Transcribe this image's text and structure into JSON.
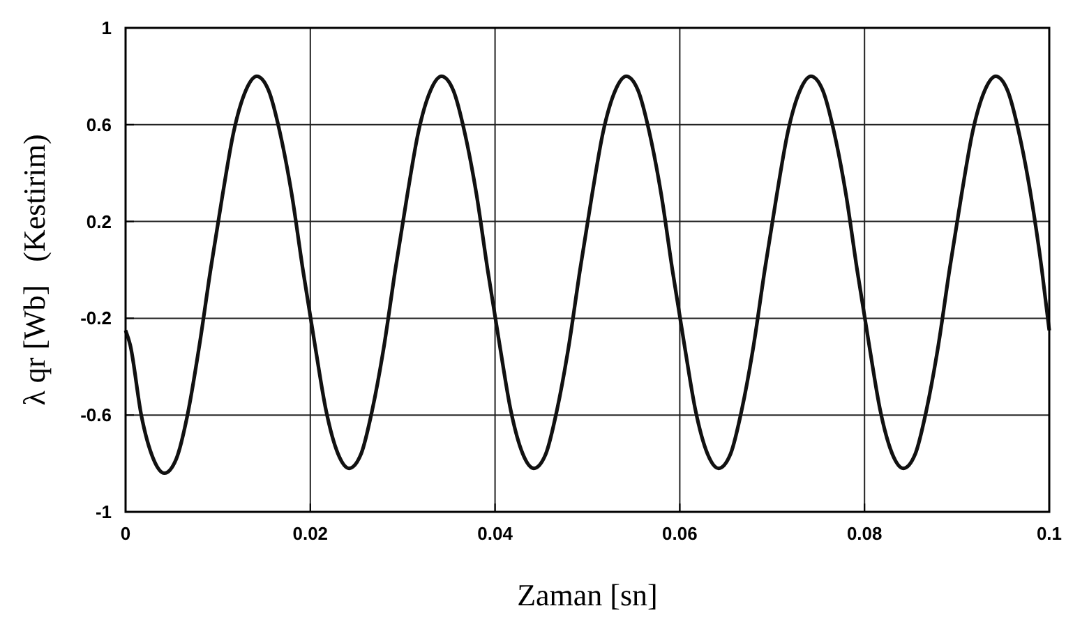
{
  "chart_data": {
    "type": "line",
    "xlabel": "Zaman [sn]",
    "ylabel": "λ qr [Wb]   (Kestirim)",
    "xlim": [
      0,
      0.1
    ],
    "ylim": [
      -1,
      1
    ],
    "xticks": [
      0,
      0.02,
      0.04,
      0.06,
      0.08,
      0.1
    ],
    "yticks": [
      -1,
      -0.6,
      -0.2,
      0.2,
      0.6,
      1
    ],
    "grid": true,
    "marker": "none",
    "line_style": "solid",
    "x": [
      0,
      0.0005,
      0.0017,
      0.003,
      0.0042,
      0.0055,
      0.0067,
      0.008,
      0.0092,
      0.0105,
      0.0117,
      0.013,
      0.0142,
      0.0155,
      0.0167,
      0.018,
      0.0192,
      0.0205,
      0.0217,
      0.023,
      0.0242,
      0.0255,
      0.0267,
      0.028,
      0.0292,
      0.0305,
      0.0317,
      0.033,
      0.0342,
      0.0355,
      0.0367,
      0.038,
      0.0392,
      0.0405,
      0.0417,
      0.043,
      0.0442,
      0.0455,
      0.0467,
      0.048,
      0.0492,
      0.0505,
      0.0517,
      0.053,
      0.0542,
      0.0555,
      0.0567,
      0.058,
      0.0592,
      0.0605,
      0.0617,
      0.063,
      0.0642,
      0.0655,
      0.0667,
      0.068,
      0.0692,
      0.0705,
      0.0717,
      0.073,
      0.0742,
      0.0755,
      0.0767,
      0.078,
      0.0792,
      0.0805,
      0.0817,
      0.083,
      0.0842,
      0.0855,
      0.0867,
      0.088,
      0.0892,
      0.0905,
      0.0917,
      0.093,
      0.0942,
      0.0955,
      0.0967,
      0.098,
      0.0992,
      0.1
    ],
    "series": [
      {
        "color": "#111111",
        "values": [
          -0.25,
          -0.31,
          -0.6,
          -0.78,
          -0.84,
          -0.78,
          -0.6,
          -0.31,
          0,
          0.31,
          0.57,
          0.74,
          0.8,
          0.74,
          0.57,
          0.31,
          0,
          -0.31,
          -0.58,
          -0.76,
          -0.82,
          -0.76,
          -0.58,
          -0.31,
          0,
          0.31,
          0.57,
          0.74,
          0.8,
          0.74,
          0.57,
          0.31,
          0,
          -0.31,
          -0.58,
          -0.76,
          -0.82,
          -0.76,
          -0.58,
          -0.31,
          0,
          0.31,
          0.57,
          0.74,
          0.8,
          0.74,
          0.57,
          0.31,
          0,
          -0.31,
          -0.58,
          -0.76,
          -0.82,
          -0.76,
          -0.58,
          -0.31,
          0,
          0.31,
          0.57,
          0.74,
          0.8,
          0.74,
          0.57,
          0.31,
          0,
          -0.31,
          -0.58,
          -0.76,
          -0.82,
          -0.76,
          -0.58,
          -0.31,
          0,
          0.31,
          0.57,
          0.74,
          0.8,
          0.74,
          0.57,
          0.31,
          0,
          -0.25
        ]
      }
    ]
  }
}
